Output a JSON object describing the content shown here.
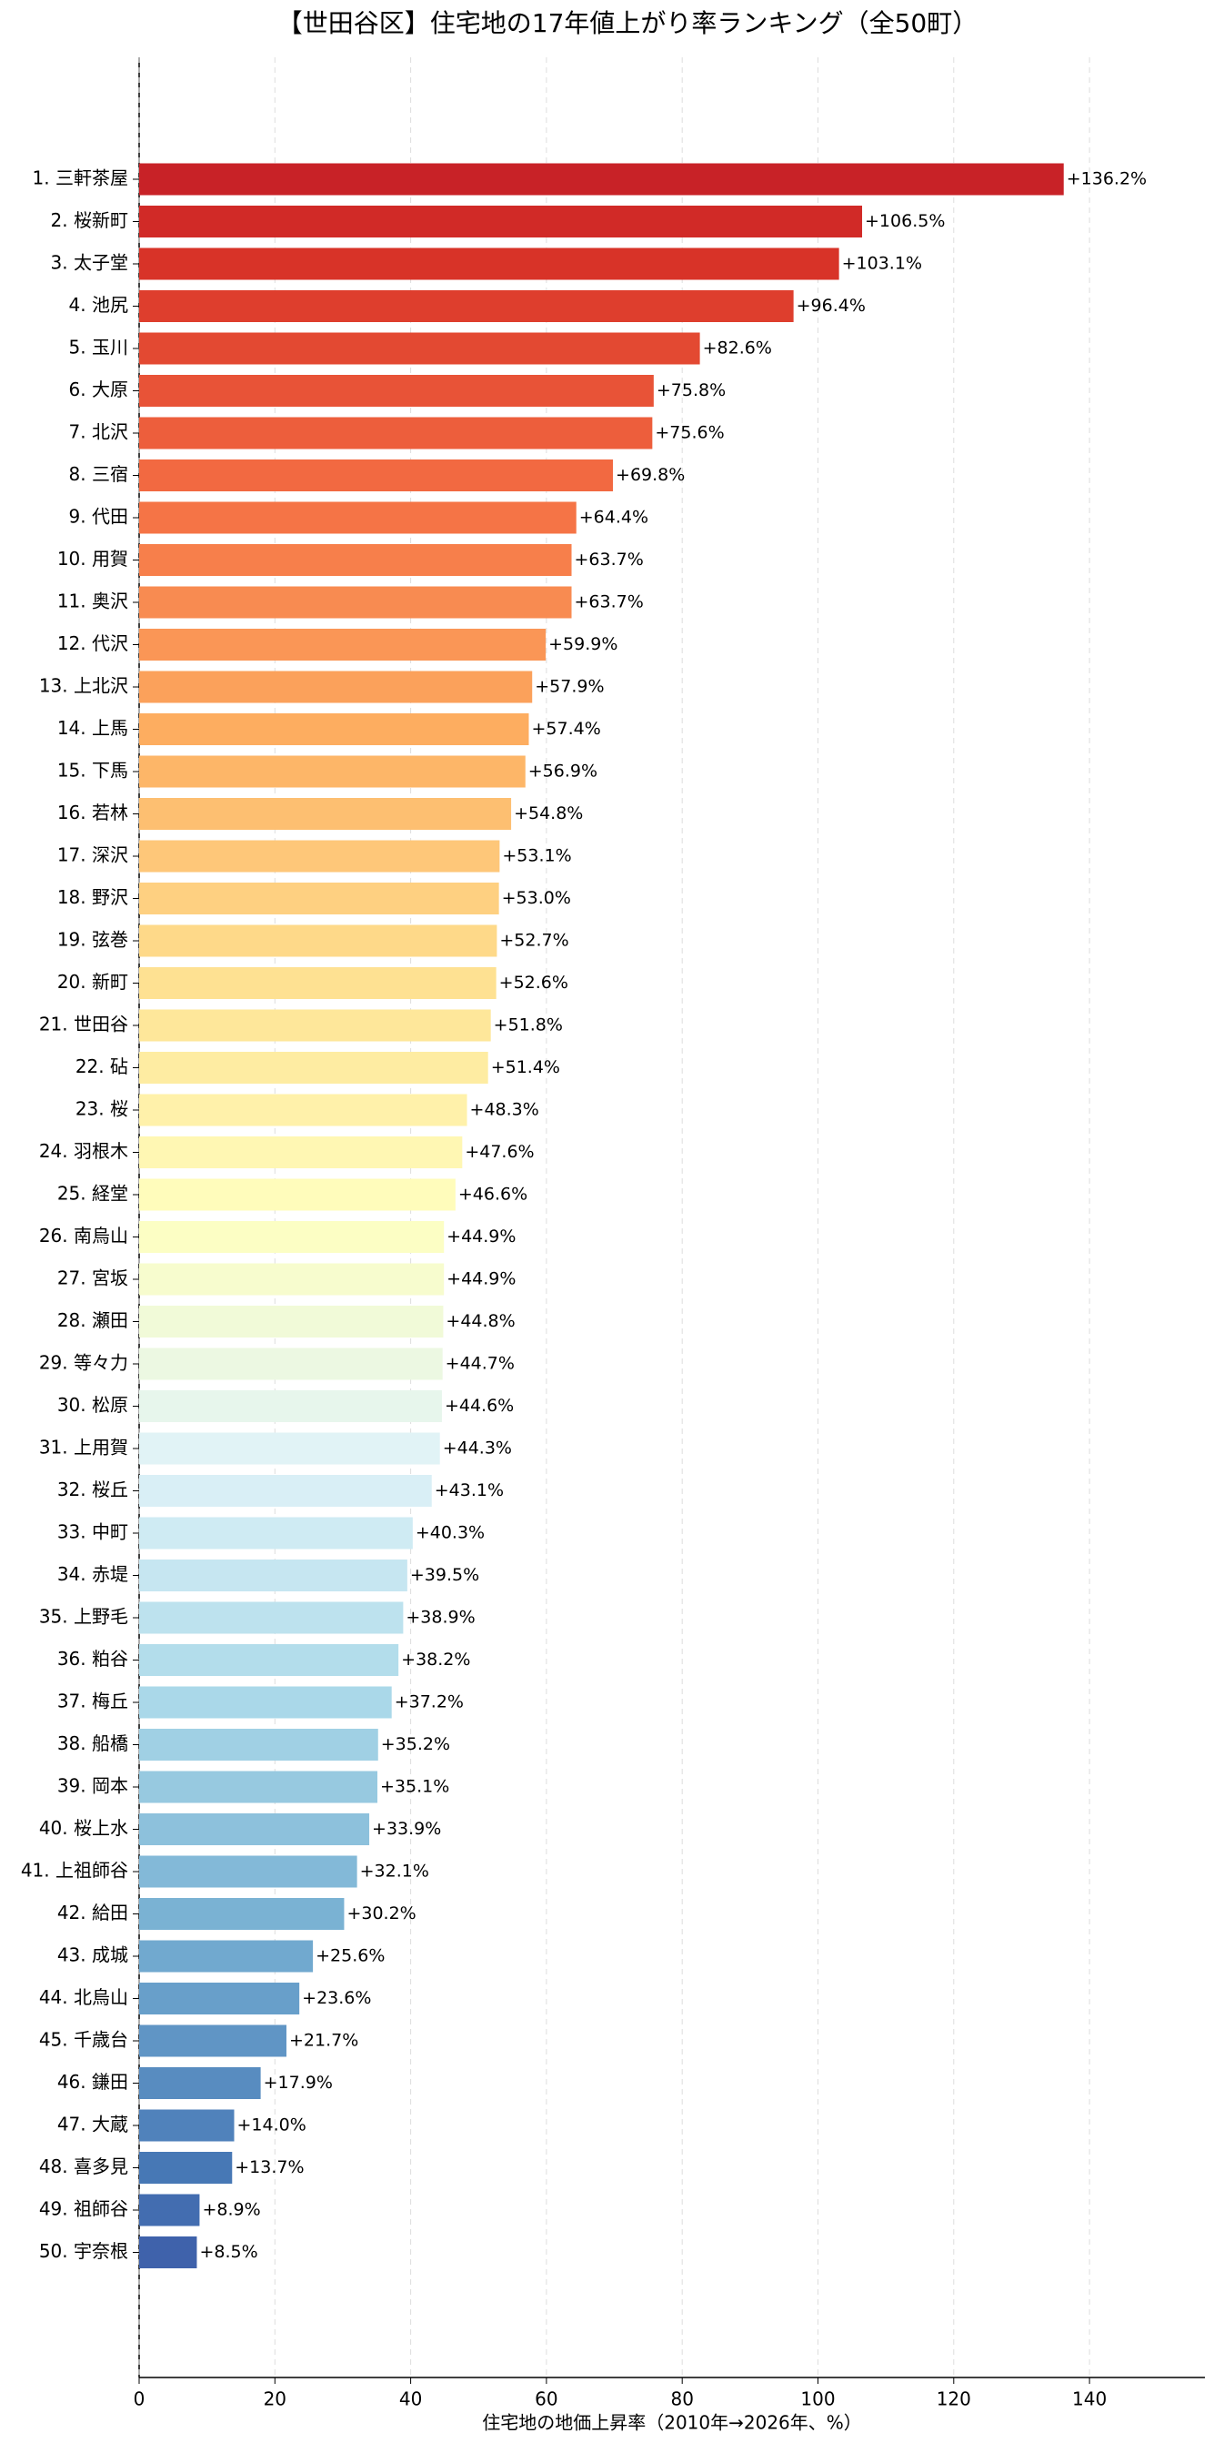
{
  "chart_data": {
    "type": "barh",
    "title": "【世田谷区】住宅地の17年値上がり率ランキング（全50町）",
    "xlabel": "住宅地の地価上昇率（2010年→2026年、%）",
    "categories": [
      "1. 三軒茶屋",
      "2. 桜新町",
      "3. 太子堂",
      "4. 池尻",
      "5. 玉川",
      "6. 大原",
      "7. 北沢",
      "8. 三宿",
      "9. 代田",
      "10. 用賀",
      "11. 奥沢",
      "12. 代沢",
      "13. 上北沢",
      "14. 上馬",
      "15. 下馬",
      "16. 若林",
      "17. 深沢",
      "18. 野沢",
      "19. 弦巻",
      "20. 新町",
      "21. 世田谷",
      "22. 砧",
      "23. 桜",
      "24. 羽根木",
      "25. 経堂",
      "26. 南烏山",
      "27. 宮坂",
      "28. 瀬田",
      "29. 等々力",
      "30. 松原",
      "31. 上用賀",
      "32. 桜丘",
      "33. 中町",
      "34. 赤堤",
      "35. 上野毛",
      "36. 粕谷",
      "37. 梅丘",
      "38. 船橋",
      "39. 岡本",
      "40. 桜上水",
      "41. 上祖師谷",
      "42. 給田",
      "43. 成城",
      "44. 北烏山",
      "45. 千歳台",
      "46. 鎌田",
      "47. 大蔵",
      "48. 喜多見",
      "49. 祖師谷",
      "50. 宇奈根"
    ],
    "values": [
      136.2,
      106.5,
      103.1,
      96.4,
      82.6,
      75.8,
      75.6,
      69.8,
      64.4,
      63.7,
      63.7,
      59.9,
      57.9,
      57.4,
      56.9,
      54.8,
      53.1,
      53.0,
      52.7,
      52.6,
      51.8,
      51.4,
      48.3,
      47.6,
      46.6,
      44.9,
      44.9,
      44.8,
      44.7,
      44.6,
      44.3,
      43.1,
      40.3,
      39.5,
      38.9,
      38.2,
      37.2,
      35.2,
      35.1,
      33.9,
      32.1,
      30.2,
      25.6,
      23.6,
      21.7,
      17.9,
      14.0,
      13.7,
      8.9,
      8.5
    ],
    "value_labels": [
      "+136.2%",
      "+106.5%",
      "+103.1%",
      "+96.4%",
      "+82.6%",
      "+75.8%",
      "+75.6%",
      "+69.8%",
      "+64.4%",
      "+63.7%",
      "+63.7%",
      "+59.9%",
      "+57.9%",
      "+57.4%",
      "+56.9%",
      "+54.8%",
      "+53.1%",
      "+53.0%",
      "+52.7%",
      "+52.6%",
      "+51.8%",
      "+51.4%",
      "+48.3%",
      "+47.6%",
      "+46.6%",
      "+44.9%",
      "+44.9%",
      "+44.8%",
      "+44.7%",
      "+44.6%",
      "+44.3%",
      "+43.1%",
      "+40.3%",
      "+39.5%",
      "+38.9%",
      "+38.2%",
      "+37.2%",
      "+35.2%",
      "+35.1%",
      "+33.9%",
      "+32.1%",
      "+30.2%",
      "+25.6%",
      "+23.6%",
      "+21.7%",
      "+17.9%",
      "+14.0%",
      "+13.7%",
      "+8.9%",
      "+8.5%"
    ],
    "colormap": "RdYlBu",
    "xlim": [
      0,
      157
    ],
    "xticks": [
      0,
      20,
      40,
      60,
      80,
      100,
      120,
      140
    ],
    "grid": true
  }
}
